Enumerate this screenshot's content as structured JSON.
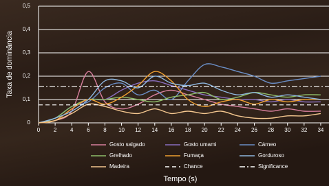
{
  "chart_data": {
    "type": "line",
    "y_label": "Taxa de dominância",
    "x_label": "Tempo (s)",
    "x": [
      0,
      2,
      4,
      6,
      8,
      10,
      12,
      14,
      16,
      18,
      20,
      22,
      24,
      26,
      28,
      30,
      32,
      34
    ],
    "xlim": [
      0,
      35
    ],
    "xticks": [
      0,
      2,
      4,
      6,
      8,
      10,
      12,
      14,
      16,
      18,
      20,
      22,
      24,
      26,
      28,
      30,
      32,
      34
    ],
    "ylim": [
      0,
      0.5
    ],
    "yticks": [
      {
        "value": 0,
        "label": "0"
      },
      {
        "value": 0.1,
        "label": "0,1"
      },
      {
        "value": 0.2,
        "label": "0,2"
      },
      {
        "value": 0.3,
        "label": "0,3"
      },
      {
        "value": 0.4,
        "label": "0,4"
      },
      {
        "value": 0.5,
        "label": "0,5"
      }
    ],
    "grid": true,
    "series": [
      {
        "name": "Gosto salgado",
        "color": "#d8809e",
        "values": [
          0,
          0.01,
          0.05,
          0.22,
          0.09,
          0.06,
          0.08,
          0.12,
          0.14,
          0.12,
          0.1,
          0.08,
          0.07,
          0.06,
          0.05,
          0.06,
          0.05,
          0.05
        ]
      },
      {
        "name": "Gosto umami",
        "color": "#8a6fc0",
        "values": [
          0,
          0.01,
          0.06,
          0.1,
          0.1,
          0.14,
          0.17,
          0.18,
          0.16,
          0.14,
          0.12,
          0.11,
          0.1,
          0.1,
          0.09,
          0.1,
          0.09,
          0.09
        ]
      },
      {
        "name": "Cárneo",
        "color": "#6b8fc7",
        "values": [
          0,
          0.02,
          0.07,
          0.09,
          0.15,
          0.17,
          0.12,
          0.14,
          0.1,
          0.18,
          0.25,
          0.24,
          0.22,
          0.2,
          0.17,
          0.18,
          0.19,
          0.2
        ]
      },
      {
        "name": "Grelhado",
        "color": "#8fbf6a",
        "values": [
          0,
          0.02,
          0.07,
          0.1,
          0.1,
          0.11,
          0.1,
          0.09,
          0.11,
          0.12,
          0.13,
          0.1,
          0.11,
          0.13,
          0.12,
          0.11,
          0.12,
          0.12
        ]
      },
      {
        "name": "Fumaça",
        "color": "#f0a030",
        "values": [
          0,
          0.01,
          0.06,
          0.1,
          0.08,
          0.11,
          0.16,
          0.22,
          0.18,
          0.1,
          0.07,
          0.09,
          0.1,
          0.08,
          0.1,
          0.09,
          0.1,
          0.1
        ]
      },
      {
        "name": "Gorduroso",
        "color": "#8fb8e0",
        "values": [
          0,
          0.02,
          0.05,
          0.1,
          0.18,
          0.18,
          0.15,
          0.2,
          0.17,
          0.16,
          0.17,
          0.14,
          0.12,
          0.13,
          0.11,
          0.12,
          0.11,
          0.1
        ]
      },
      {
        "name": "Madeira",
        "color": "#f5c890",
        "values": [
          0,
          0.01,
          0.04,
          0.08,
          0.07,
          0.05,
          0.04,
          0.06,
          0.04,
          0.05,
          0.04,
          0.05,
          0.03,
          0.02,
          0.02,
          0.03,
          0.03,
          0.04
        ]
      }
    ],
    "reference_lines": [
      {
        "name": "Chance",
        "value": 0.077,
        "color": "#ffffff",
        "dash": "6 4"
      },
      {
        "name": "Significance",
        "value": 0.155,
        "color": "#ffffff",
        "dash": "8 3 2 3"
      }
    ]
  }
}
